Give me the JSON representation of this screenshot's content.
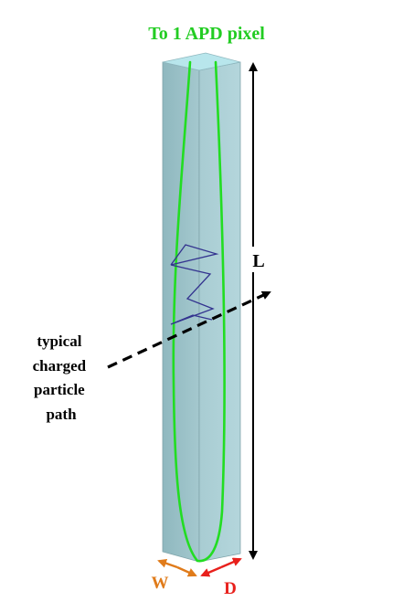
{
  "title": "To 1 APD pixel",
  "labels": {
    "length": "L",
    "width": "W",
    "depth": "D",
    "particle_path_lines": [
      "typical",
      "charged",
      "particle",
      "path"
    ]
  },
  "colors": {
    "title": "#22cc22",
    "light_path": "#22dd22",
    "zigzag": "#33338f",
    "crystal_front": "#9cc2c8",
    "crystal_side": "#a9cdd3",
    "crystal_top": "#b8e6ec",
    "width_arrow": "#e07b1a",
    "depth_arrow": "#e8201c",
    "length_arrow": "#000000"
  }
}
